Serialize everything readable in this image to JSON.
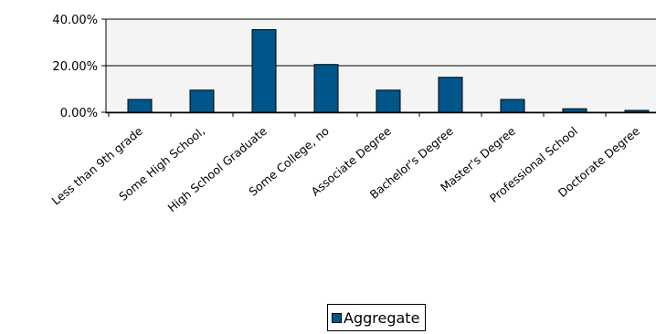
{
  "chart_data": {
    "type": "bar",
    "categories": [
      "Less than 9th grade",
      "Some High School,",
      "High School Graduate",
      "Some College, no",
      "Associate Degree",
      "Bachelor's Degree",
      "Master's Degree",
      "Professional School",
      "Doctorate Degree"
    ],
    "series": [
      {
        "name": "Aggregate",
        "values": [
          5.5,
          9.5,
          35.5,
          20.5,
          9.5,
          15.0,
          5.5,
          1.5,
          0.8
        ]
      }
    ],
    "ylim": [
      0,
      40
    ],
    "yticks": [
      "0.00%",
      "20.00%",
      "40.00%"
    ],
    "grid": true,
    "legend": "bottom",
    "colors": {
      "bar": "#00568a",
      "plot_background": "#f4f4f4",
      "axis": "#000000"
    }
  }
}
